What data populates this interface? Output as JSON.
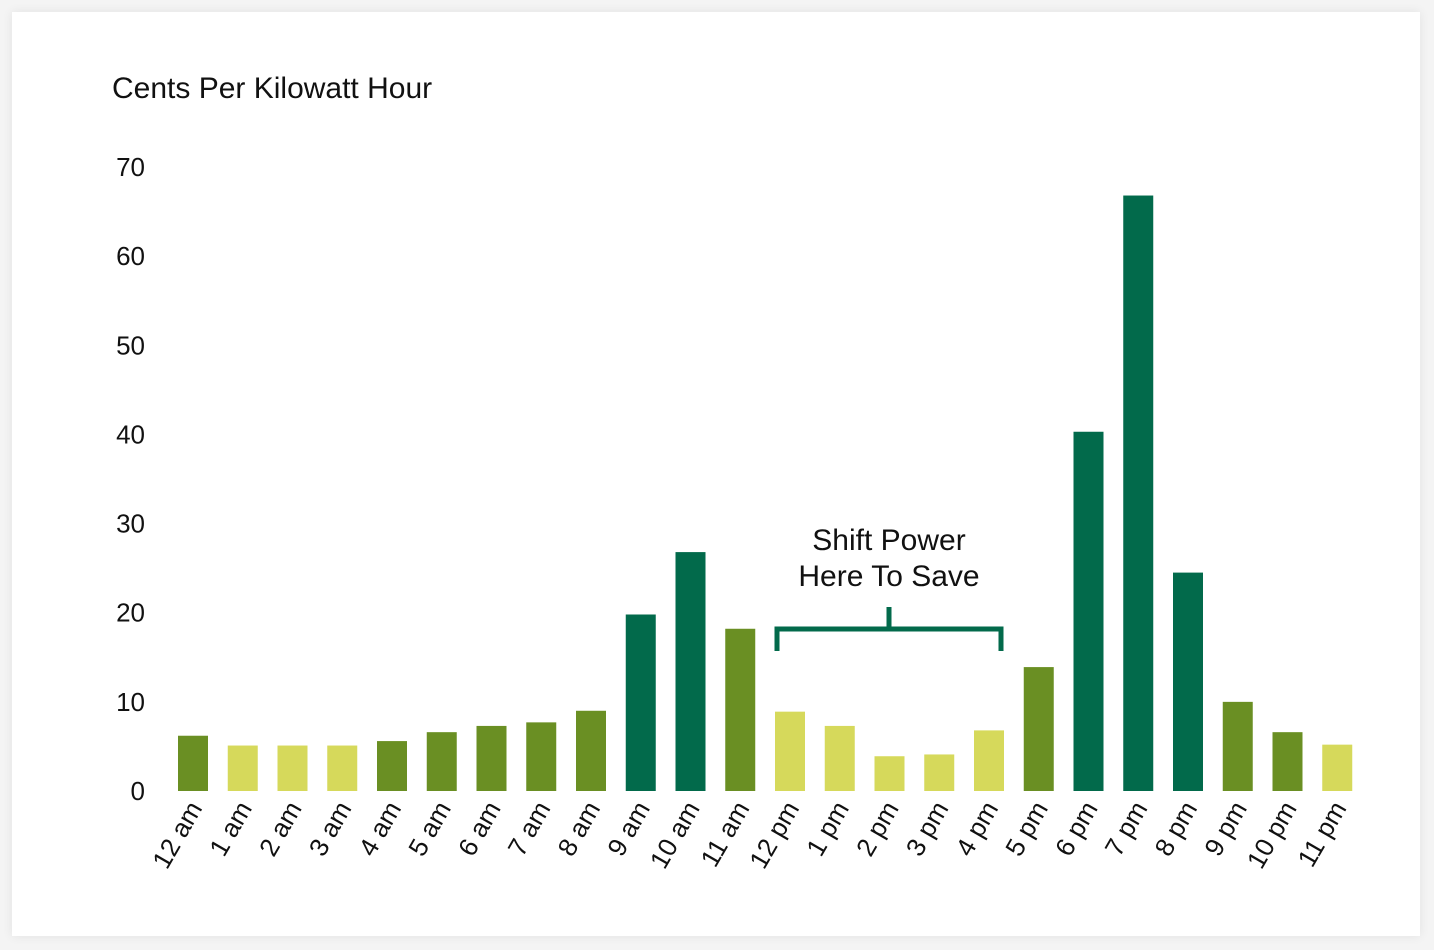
{
  "chart_data": {
    "type": "bar",
    "ylabel": "Cents Per Kilowatt Hour",
    "ylim": [
      0,
      70
    ],
    "yticks": [
      0,
      10,
      20,
      30,
      40,
      50,
      60,
      70
    ],
    "grid": false,
    "categories": [
      "12 am",
      "1 am",
      "2 am",
      "3 am",
      "4 am",
      "5 am",
      "6 am",
      "7 am",
      "8 am",
      "9 am",
      "10 am",
      "11 am",
      "12 pm",
      "1 pm",
      "2 pm",
      "3 pm",
      "4 pm",
      "5 pm",
      "6 pm",
      "7 pm",
      "8 pm",
      "9 pm",
      "10 pm",
      "11 pm"
    ],
    "values": [
      6.2,
      5.1,
      5.1,
      5.1,
      5.6,
      6.6,
      7.3,
      7.7,
      9.0,
      19.8,
      26.8,
      18.2,
      8.9,
      7.3,
      3.9,
      4.1,
      6.8,
      13.9,
      40.3,
      66.8,
      24.5,
      10.0,
      6.6,
      5.2
    ],
    "levels": [
      "mid",
      "low",
      "low",
      "low",
      "mid",
      "mid",
      "mid",
      "mid",
      "mid",
      "high",
      "high",
      "mid",
      "low",
      "low",
      "low",
      "low",
      "low",
      "mid",
      "high",
      "high",
      "high",
      "mid",
      "mid",
      "low"
    ],
    "colors": {
      "low": "#d6d95b",
      "mid": "#6a8f23",
      "high": "#026a4b"
    },
    "annotation": {
      "lines": [
        "Shift Power",
        "Here To Save"
      ],
      "from_category": "12 pm",
      "to_category": "4 pm",
      "color": "#026a4b"
    }
  }
}
